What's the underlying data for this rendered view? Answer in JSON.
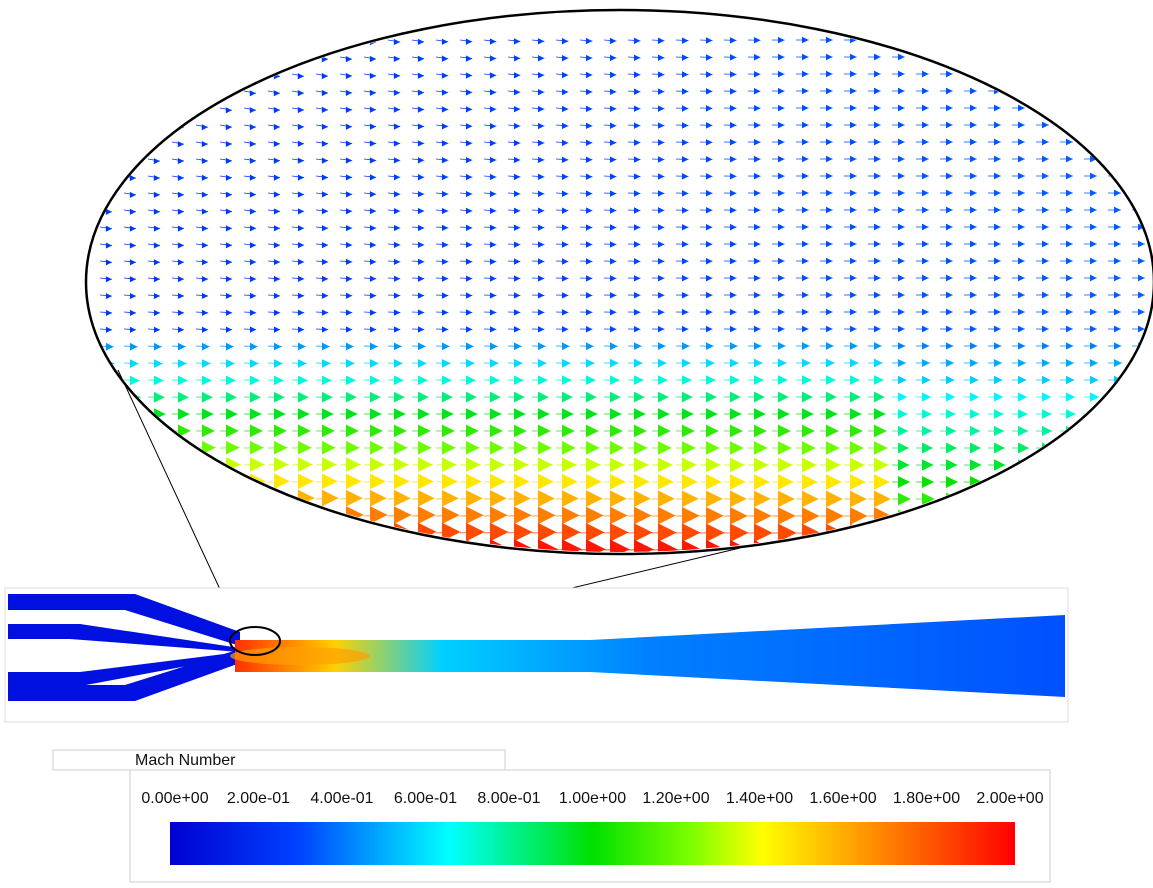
{
  "colorbar": {
    "title": "Mach Number",
    "lim": [
      0,
      2
    ],
    "ticks": [
      {
        "value": 0,
        "label": "0.00e+00"
      },
      {
        "value": 0.2,
        "label": "2.00e-01"
      },
      {
        "value": 0.4,
        "label": "4.00e-01"
      },
      {
        "value": 0.6,
        "label": "6.00e-01"
      },
      {
        "value": 0.8,
        "label": "8.00e-01"
      },
      {
        "value": 1,
        "label": "1.00e+00"
      },
      {
        "value": 1.2,
        "label": "1.20e+00"
      },
      {
        "value": 1.4,
        "label": "1.40e+00"
      },
      {
        "value": 1.6,
        "label": "1.60e+00"
      },
      {
        "value": 1.8,
        "label": "1.80e+00"
      },
      {
        "value": 2,
        "label": "2.00e+00"
      }
    ]
  }
}
